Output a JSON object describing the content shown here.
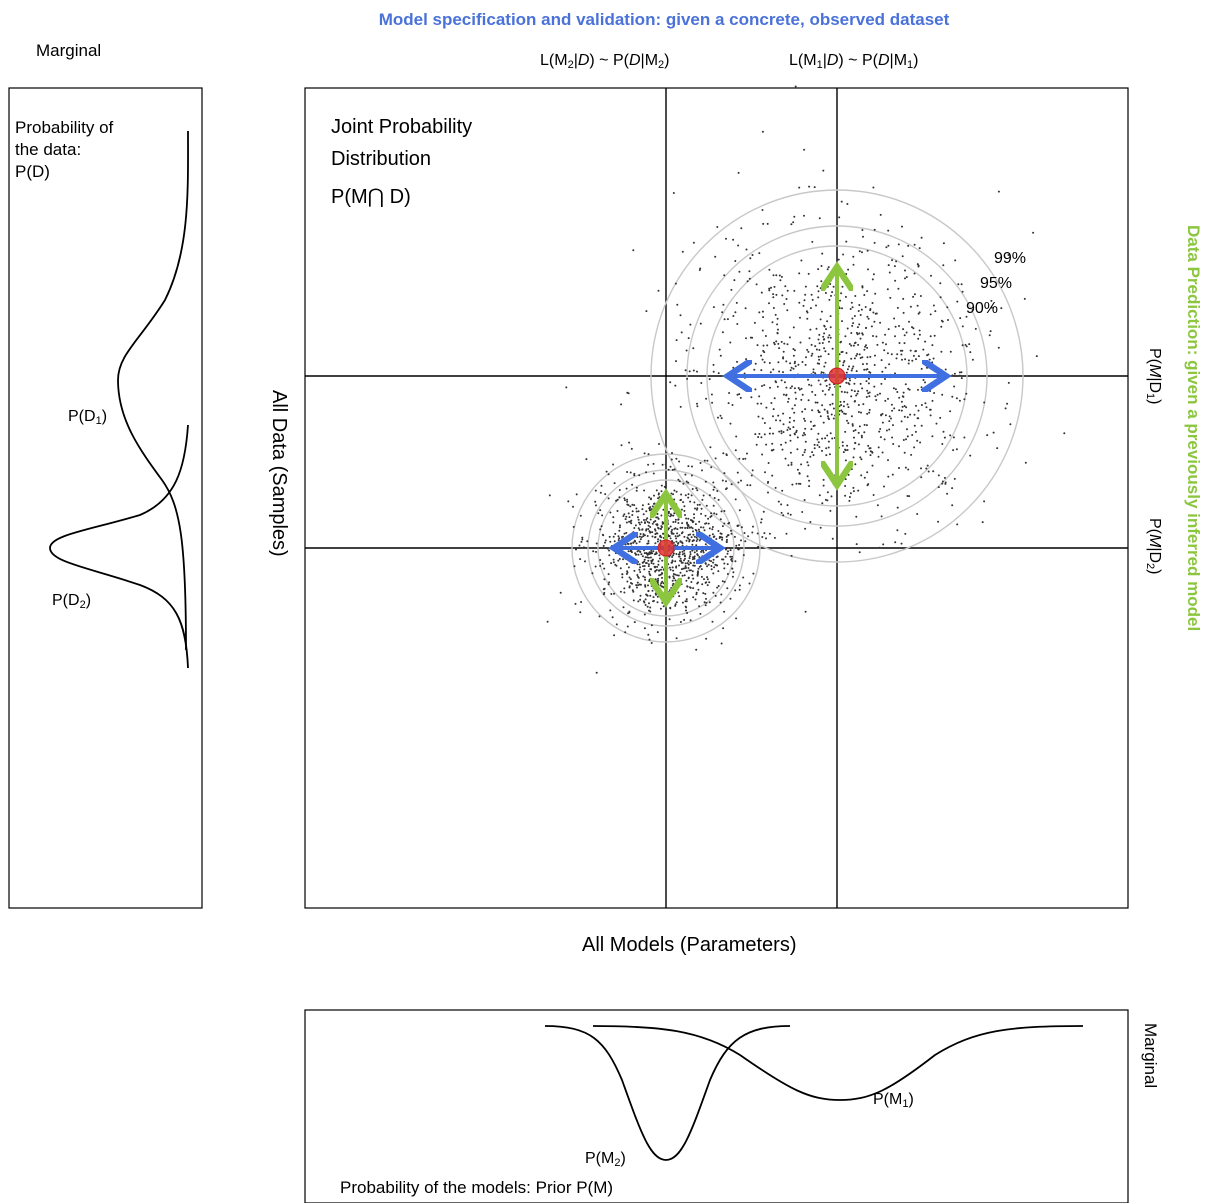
{
  "colors": {
    "blue_title": "#4a72d8",
    "green_title": "#8cc63f",
    "blue_arrow": "#3f6fe0",
    "green_arrow": "#8cc63f",
    "mode_point": "#e03030",
    "contour": "#c8c8c8",
    "points": "#333333"
  },
  "header": {
    "title": "Model specification and validation: given a concrete, observed dataset",
    "left_marginal_label": "Marginal"
  },
  "likelihood_labels": {
    "m2": {
      "prefix": "L(M",
      "sub": "2",
      "mid": "|",
      "d": "D",
      "tail": ") ~ P(",
      "d2": "D",
      "tail2": "|M",
      "sub2": "2",
      "end": ")"
    },
    "m1": {
      "prefix": "L(M",
      "sub": "1",
      "mid": "|",
      "d": "D",
      "tail": ") ~ P(",
      "d2": "D",
      "tail2": "|M",
      "sub2": "1",
      "end": ")"
    }
  },
  "joint": {
    "title_line1": "Joint Probability",
    "title_line2": "Distribution",
    "title_line3": "P(M⋂ D)",
    "contour_levels": [
      "99%",
      "95%",
      "90%"
    ],
    "x_axis_label": "All Models (Parameters)",
    "y_axis_label": "All Data (Samples)"
  },
  "right_side": {
    "title": "Data Prediction: given a previously inferred model",
    "cond1_prefix": "P(",
    "cond1_m": "M",
    "cond1_mid": "|D",
    "cond1_sub": "1",
    "cond1_end": ")",
    "cond2_prefix": "P(",
    "cond2_m": "M",
    "cond2_mid": "|D",
    "cond2_sub": "2",
    "cond2_end": ")"
  },
  "left_panel": {
    "title_line1": "Probability of",
    "title_line2": "the data:",
    "title_line3": "P(D)",
    "d1_label": "P(D",
    "d1_sub": "1",
    "d2_label": "P(D",
    "d2_sub": "2",
    "close": ")"
  },
  "bottom_panel": {
    "m1_label": "P(M",
    "m1_sub": "1",
    "m2_label": "P(M",
    "m2_sub": "2",
    "close": ")",
    "caption": "Probability of the models: Prior P(M)",
    "side_label": "Marginal"
  }
}
